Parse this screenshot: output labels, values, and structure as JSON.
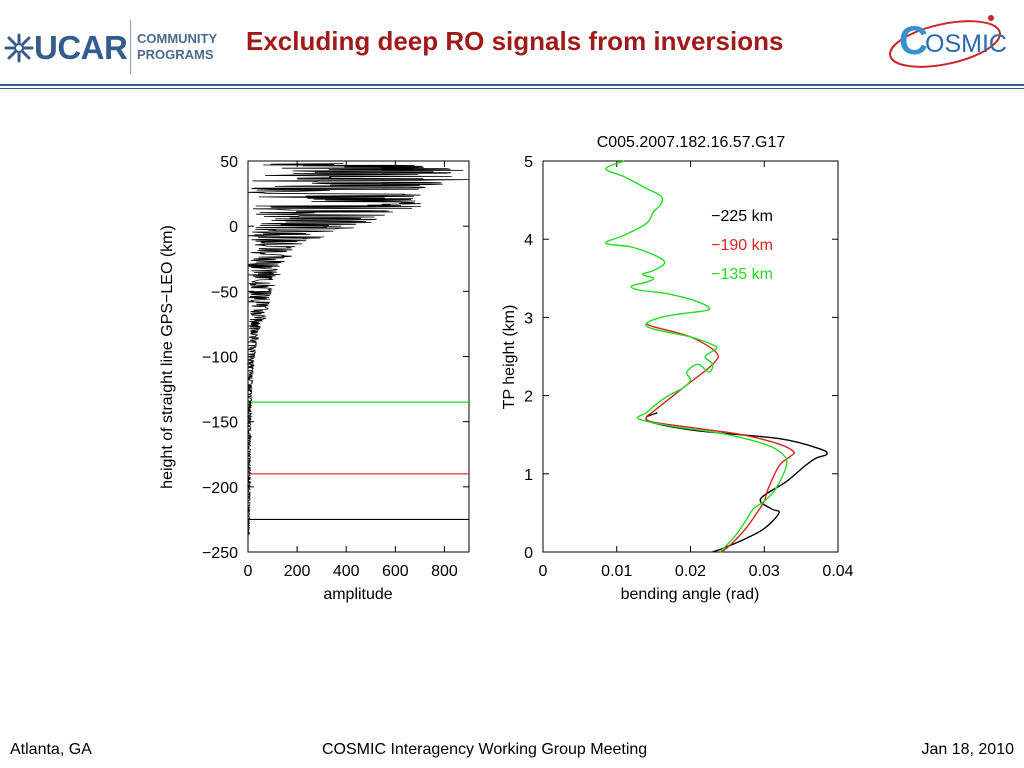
{
  "header": {
    "logo_text": "UCAR",
    "logo_sub_line1": "COMMUNITY",
    "logo_sub_line2": "PROGRAMS",
    "title": "Excluding deep RO signals from inversions",
    "cosmic_logo_text": "OSMIC",
    "cosmic_logo_initial": "C"
  },
  "footer": {
    "location": "Atlanta, GA",
    "meeting": "COSMIC Interagency Working Group Meeting",
    "date": "Jan 18, 2010"
  },
  "colors": {
    "title": "#a01a1a",
    "ucar_blue": "#355c8c",
    "green": "#22dd22",
    "red": "#dd2222",
    "black": "#000000"
  },
  "chart_data": [
    {
      "type": "line",
      "title": "",
      "xlabel": "amplitude",
      "ylabel": "height of straight line GPS−LEO (km)",
      "xlim": [
        0,
        900
      ],
      "ylim": [
        -250,
        50
      ],
      "xticks": [
        0,
        200,
        400,
        600,
        800
      ],
      "xtick_labels": [
        "0",
        "200",
        "400",
        "600",
        "800"
      ],
      "yticks": [
        50,
        0,
        -50,
        -100,
        -150,
        -200,
        -250
      ],
      "ytick_labels": [
        "50",
        "0",
        "−50",
        "−100",
        "−150",
        "−200",
        "−250"
      ],
      "amplitude_envelope": {
        "h": [
          48,
          40,
          30,
          20,
          10,
          5,
          0,
          -5,
          -10,
          -15,
          -20,
          -25,
          -30,
          -35,
          -40,
          -45,
          -50,
          -55,
          -60,
          -65,
          -70,
          -75,
          -80,
          -90,
          -100,
          -110,
          -120,
          -130,
          -140,
          -150,
          -160,
          -170,
          -180,
          -190,
          -200,
          -210,
          -220,
          -230,
          -237
        ],
        "amp": [
          880,
          860,
          780,
          700,
          620,
          520,
          420,
          330,
          250,
          220,
          180,
          150,
          130,
          120,
          110,
          110,
          100,
          95,
          90,
          80,
          70,
          55,
          45,
          35,
          28,
          22,
          18,
          15,
          13,
          12,
          11,
          10,
          10,
          9,
          9,
          8,
          7,
          6,
          5
        ]
      },
      "horizontal_lines": [
        {
          "height": -135,
          "color": "#22dd22"
        },
        {
          "height": -190,
          "color": "#dd2222"
        },
        {
          "height": -225,
          "color": "#000000"
        }
      ]
    },
    {
      "type": "line",
      "title": "C005.2007.182.16.57.G17",
      "xlabel": "bending angle (rad)",
      "ylabel": "TP height (km)",
      "xlim": [
        0,
        0.04
      ],
      "ylim": [
        0,
        5
      ],
      "xticks": [
        0,
        0.01,
        0.02,
        0.03,
        0.04
      ],
      "xtick_labels": [
        "0",
        "0.01",
        "0.02",
        "0.03",
        "0.04"
      ],
      "yticks": [
        0,
        1,
        2,
        3,
        4,
        5
      ],
      "ytick_labels": [
        "0",
        "1",
        "2",
        "3",
        "4",
        "5"
      ],
      "legend_position": "top-right",
      "series": [
        {
          "name": "−225 km",
          "color": "#000000",
          "x": [
            0.023,
            0.0245,
            0.027,
            0.03,
            0.032,
            0.031,
            0.0295,
            0.033,
            0.0355,
            0.037,
            0.0385,
            0.0375,
            0.032,
            0.021,
            0.015,
            0.014,
            0.0155
          ],
          "y": [
            0.0,
            0.05,
            0.15,
            0.3,
            0.5,
            0.55,
            0.68,
            0.9,
            1.1,
            1.2,
            1.25,
            1.32,
            1.45,
            1.55,
            1.65,
            1.72,
            1.78
          ]
        },
        {
          "name": "−190 km",
          "color": "#dd2222",
          "x": [
            0.0242,
            0.0255,
            0.0275,
            0.029,
            0.03,
            0.0305,
            0.032,
            0.0335,
            0.034,
            0.032,
            0.027,
            0.021,
            0.015,
            0.014,
            0.015,
            0.019,
            0.023,
            0.0235,
            0.02,
            0.015,
            0.014
          ],
          "y": [
            0.0,
            0.1,
            0.3,
            0.5,
            0.65,
            0.8,
            1.1,
            1.22,
            1.28,
            1.38,
            1.5,
            1.58,
            1.66,
            1.72,
            1.8,
            2.1,
            2.4,
            2.55,
            2.75,
            2.88,
            2.92
          ]
        },
        {
          "name": "−135 km",
          "color": "#22dd22",
          "x": [
            0.024,
            0.026,
            0.0275,
            0.0285,
            0.03,
            0.0315,
            0.033,
            0.0325,
            0.03,
            0.024,
            0.018,
            0.013,
            0.014,
            0.0155,
            0.017,
            0.019,
            0.02,
            0.0195,
            0.021,
            0.0225,
            0.023,
            0.022,
            0.0235,
            0.023,
            0.02,
            0.015,
            0.014,
            0.016,
            0.019,
            0.0225,
            0.021,
            0.017,
            0.013,
            0.012,
            0.014,
            0.015,
            0.0135,
            0.015,
            0.0165,
            0.015,
            0.012,
            0.0085,
            0.011,
            0.014,
            0.015,
            0.016,
            0.016,
            0.014,
            0.011,
            0.0085,
            0.011
          ],
          "y": [
            0.0,
            0.2,
            0.4,
            0.55,
            0.65,
            0.8,
            1.1,
            1.25,
            1.38,
            1.52,
            1.6,
            1.7,
            1.78,
            1.9,
            2.0,
            2.1,
            2.2,
            2.3,
            2.4,
            2.3,
            2.4,
            2.5,
            2.6,
            2.65,
            2.75,
            2.85,
            2.92,
            3.0,
            3.05,
            3.1,
            3.2,
            3.3,
            3.35,
            3.4,
            3.45,
            3.5,
            3.55,
            3.6,
            3.7,
            3.8,
            3.9,
            3.95,
            4.05,
            4.2,
            4.35,
            4.45,
            4.55,
            4.65,
            4.8,
            4.9,
            5.0
          ]
        }
      ]
    }
  ]
}
